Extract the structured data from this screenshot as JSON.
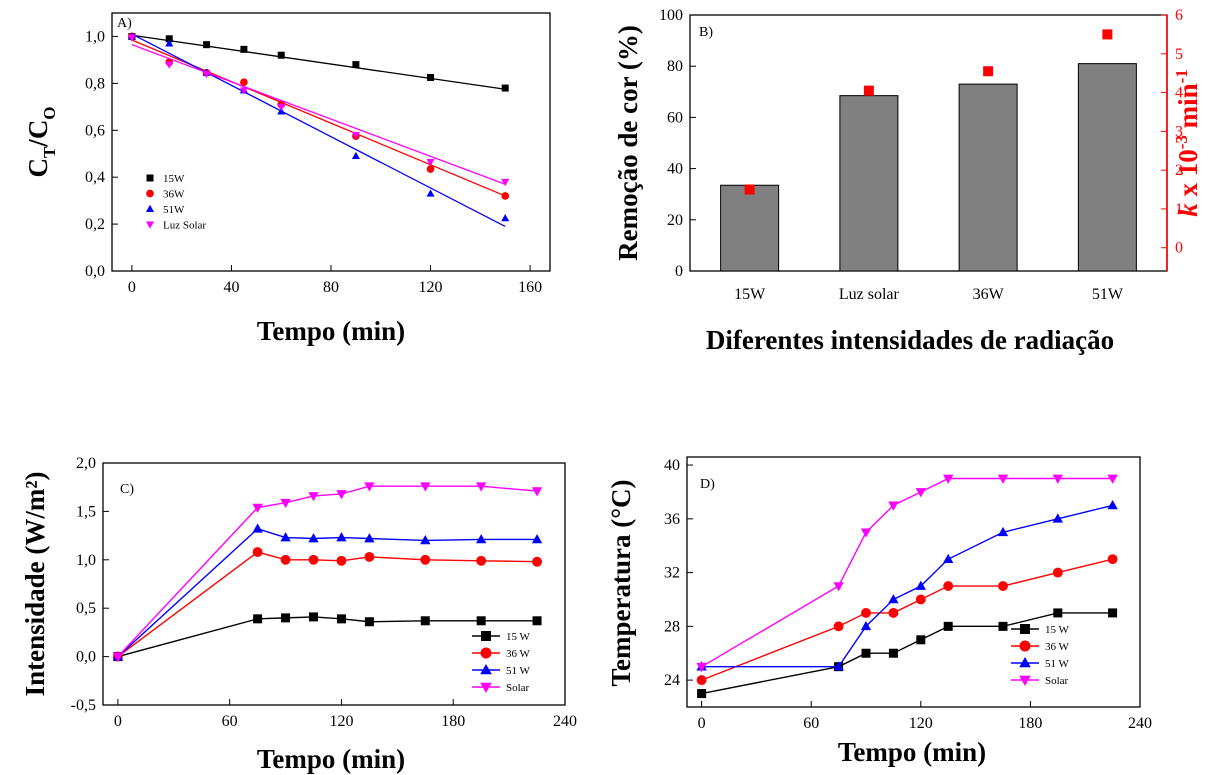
{
  "colors": {
    "15W": "#000000",
    "36W": "#ff0000",
    "51W": "#0000ff",
    "Solar": "#ff00ff",
    "bar": "#808080",
    "right_axis": "#ff0000"
  },
  "chart_data": [
    {
      "id": "A",
      "type": "scatter",
      "panel_label": "A)",
      "xlabel": "Tempo (min)",
      "ylabel_main": "C",
      "ylabel_sub1": "T",
      "ylabel_mid": "/C",
      "ylabel_sub2": "O",
      "xlim": [
        -8,
        168
      ],
      "ylim": [
        0,
        1.1
      ],
      "xticks": [
        0,
        40,
        80,
        120,
        160
      ],
      "yticks": [
        0.0,
        0.2,
        0.4,
        0.6,
        0.8,
        1.0
      ],
      "ytick_labels": [
        "0,0",
        "0,2",
        "0,4",
        "0,6",
        "0,8",
        "1,0"
      ],
      "series": [
        {
          "name": "15W",
          "marker": "square",
          "color": "#000000",
          "x": [
            0,
            15,
            30,
            45,
            60,
            90,
            120,
            150
          ],
          "y": [
            1.0,
            0.99,
            0.965,
            0.945,
            0.92,
            0.88,
            0.825,
            0.78
          ],
          "fit": [
            [
              0,
              1.005
            ],
            [
              150,
              0.775
            ]
          ]
        },
        {
          "name": "36W",
          "marker": "circle",
          "color": "#ff0000",
          "x": [
            0,
            15,
            30,
            45,
            60,
            90,
            120,
            150
          ],
          "y": [
            1.0,
            0.89,
            0.845,
            0.805,
            0.71,
            0.575,
            0.435,
            0.32
          ],
          "fit": [
            [
              0,
              0.985
            ],
            [
              150,
              0.32
            ]
          ]
        },
        {
          "name": "51W",
          "marker": "triangle-up",
          "color": "#0000ff",
          "x": [
            0,
            15,
            30,
            45,
            60,
            90,
            120,
            150
          ],
          "y": [
            1.0,
            0.97,
            0.845,
            0.77,
            0.68,
            0.49,
            0.33,
            0.225
          ],
          "fit": [
            [
              0,
              1.01
            ],
            [
              150,
              0.19
            ]
          ]
        },
        {
          "name": "Luz Solar",
          "marker": "triangle-down",
          "color": "#ff00ff",
          "x": [
            0,
            15,
            30,
            45,
            60,
            90,
            120,
            150
          ],
          "y": [
            0.995,
            0.88,
            0.84,
            0.77,
            0.7,
            0.58,
            0.465,
            0.38
          ],
          "fit": [
            [
              0,
              0.965
            ],
            [
              150,
              0.37
            ]
          ]
        }
      ]
    },
    {
      "id": "B",
      "type": "bar",
      "panel_label": "B)",
      "xlabel": "Diferentes intensidades de radiação",
      "ylabel": "Remoção de cor (%)",
      "y2label_k": "k",
      "y2label_rest": " x 10",
      "y2label_exp1": "-3",
      "y2label_min": " min",
      "y2label_exp2": "-1",
      "categories": [
        "15W",
        "Luz solar",
        "36W",
        "51W"
      ],
      "values": [
        33.5,
        68.5,
        73,
        81
      ],
      "ylim": [
        0,
        100
      ],
      "yticks": [
        0,
        20,
        40,
        60,
        80,
        100
      ],
      "y2lim": [
        -0.6,
        6
      ],
      "y2ticks": [
        0,
        1,
        2,
        3,
        4,
        5,
        6
      ],
      "k_values": [
        1.5,
        4.05,
        4.55,
        5.5
      ]
    },
    {
      "id": "C",
      "type": "line",
      "panel_label": "C)",
      "xlabel": "Tempo (min)",
      "ylabel": "Intensidade (W/m²)",
      "xlim": [
        -8,
        240
      ],
      "ylim": [
        -0.5,
        2.0
      ],
      "xticks": [
        0,
        60,
        120,
        180,
        240
      ],
      "yticks": [
        -0.5,
        0.0,
        0.5,
        1.0,
        1.5,
        2.0
      ],
      "ytick_labels": [
        "-0,5",
        "0,0",
        "0,5",
        "1,0",
        "1,5",
        "2,0"
      ],
      "series": [
        {
          "name": "15 W",
          "marker": "square",
          "color": "#000000",
          "x": [
            0,
            75,
            90,
            105,
            120,
            135,
            165,
            195,
            225
          ],
          "y": [
            0.0,
            0.39,
            0.4,
            0.41,
            0.39,
            0.36,
            0.37,
            0.37,
            0.37
          ]
        },
        {
          "name": "36 W",
          "marker": "circle",
          "color": "#ff0000",
          "x": [
            0,
            75,
            90,
            105,
            120,
            135,
            165,
            195,
            225
          ],
          "y": [
            0.0,
            1.08,
            1.0,
            1.0,
            0.99,
            1.03,
            1.0,
            0.99,
            0.98
          ]
        },
        {
          "name": "51 W",
          "marker": "triangle-up",
          "color": "#0000ff",
          "x": [
            0,
            75,
            90,
            105,
            120,
            135,
            165,
            195,
            225
          ],
          "y": [
            0.0,
            1.32,
            1.23,
            1.22,
            1.23,
            1.22,
            1.2,
            1.21,
            1.21
          ]
        },
        {
          "name": "Solar",
          "marker": "triangle-down",
          "color": "#ff00ff",
          "x": [
            0,
            75,
            90,
            105,
            120,
            135,
            165,
            195,
            225
          ],
          "y": [
            0.0,
            1.54,
            1.59,
            1.66,
            1.68,
            1.76,
            1.76,
            1.76,
            1.71
          ]
        }
      ]
    },
    {
      "id": "D",
      "type": "line",
      "panel_label": "D)",
      "xlabel": "Tempo (min)",
      "ylabel": "Temperatura (°C)",
      "xlim": [
        -8,
        240
      ],
      "ylim": [
        22,
        40.6
      ],
      "xticks": [
        0,
        60,
        120,
        180,
        240
      ],
      "yticks": [
        24,
        28,
        32,
        36,
        40
      ],
      "series": [
        {
          "name": "15 W",
          "marker": "square",
          "color": "#000000",
          "x": [
            0,
            75,
            90,
            105,
            120,
            135,
            165,
            195,
            225
          ],
          "y": [
            23,
            25,
            26,
            26,
            27,
            28,
            28,
            29,
            29
          ]
        },
        {
          "name": "36 W",
          "marker": "circle",
          "color": "#ff0000",
          "x": [
            0,
            75,
            90,
            105,
            120,
            135,
            165,
            195,
            225
          ],
          "y": [
            24,
            28,
            29,
            29,
            30,
            31,
            31,
            32,
            33
          ]
        },
        {
          "name": "51 W",
          "marker": "triangle-up",
          "color": "#0000ff",
          "x": [
            0,
            75,
            90,
            105,
            120,
            135,
            165,
            195,
            225
          ],
          "y": [
            25,
            25,
            28,
            30,
            31,
            33,
            35,
            36,
            37
          ]
        },
        {
          "name": "Solar",
          "marker": "triangle-down",
          "color": "#ff00ff",
          "x": [
            0,
            75,
            90,
            105,
            120,
            135,
            165,
            195,
            225
          ],
          "y": [
            25,
            31,
            35,
            37,
            38,
            39,
            39,
            39,
            39
          ]
        }
      ]
    }
  ]
}
